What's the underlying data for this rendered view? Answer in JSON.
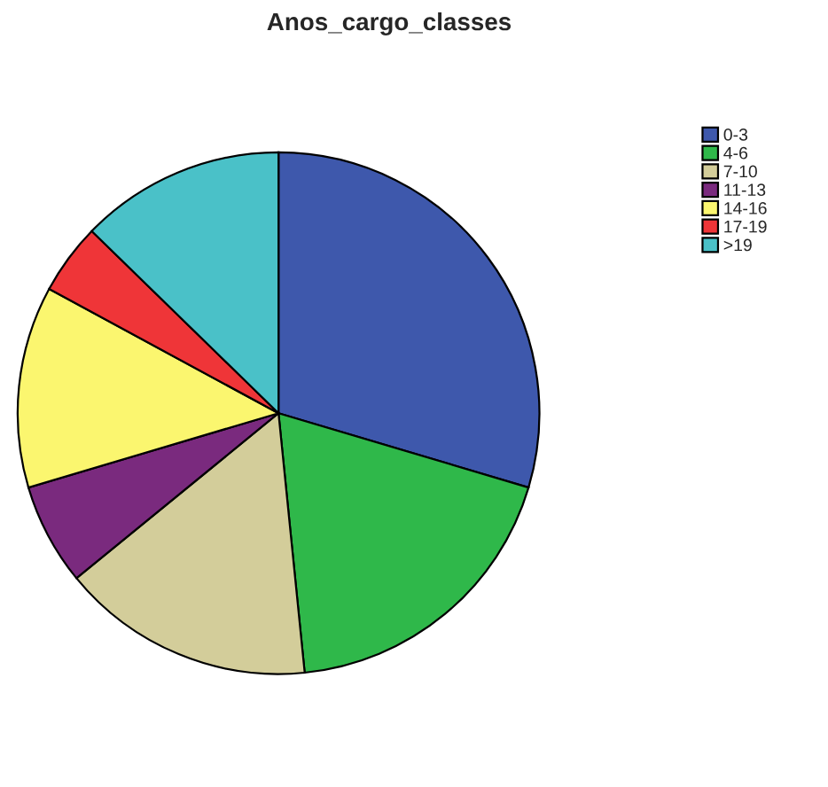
{
  "chart_data": {
    "type": "pie",
    "title": "Anos_cargo_classes",
    "categories": [
      "0-3",
      "4-6",
      "7-10",
      "11-13",
      "14-16",
      "17-19",
      ">19"
    ],
    "values": [
      29.6,
      18.8,
      15.7,
      6.3,
      12.5,
      4.4,
      12.7
    ],
    "colors": [
      "#3e58ac",
      "#2fb84a",
      "#d3cd9a",
      "#7a2a7e",
      "#fbf66f",
      "#ef3538",
      "#4ac1c8"
    ],
    "legend": "top right"
  }
}
